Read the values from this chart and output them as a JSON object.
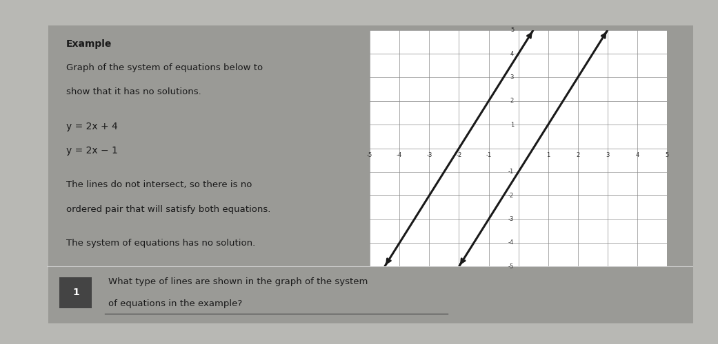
{
  "background_color": "#b8b8b4",
  "card_color": "#f2f0ee",
  "title": "Example",
  "slope": 2,
  "intercept1": 4,
  "intercept2": -1,
  "xlim": [
    -5,
    5
  ],
  "ylim": [
    -5,
    5
  ],
  "grid_color": "#888888",
  "line_color": "#1a1a1a",
  "axis_color": "#1a1a1a",
  "question_num": "1",
  "question_text": "What type of lines are shown in the graph of the system",
  "question_text2": "of equations in the example?",
  "title_fontsize": 10,
  "body_fontsize": 9.5,
  "eq_fontsize": 10
}
